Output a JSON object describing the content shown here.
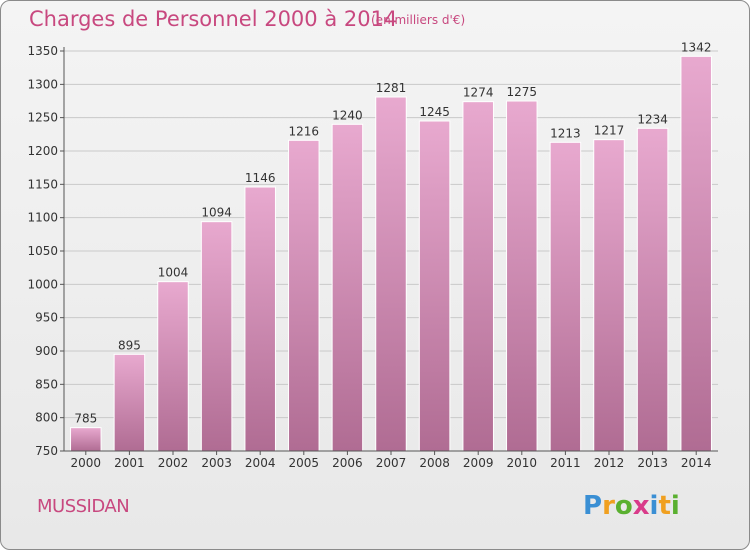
{
  "chart_data": {
    "type": "bar",
    "title": "Charges de Personnel 2000 à 2014",
    "subtitle": "(en milliers d'€)",
    "categories": [
      "2000",
      "2001",
      "2002",
      "2003",
      "2004",
      "2005",
      "2006",
      "2007",
      "2008",
      "2009",
      "2010",
      "2011",
      "2012",
      "2013",
      "2014"
    ],
    "values": [
      785,
      895,
      1004,
      1094,
      1146,
      1216,
      1240,
      1281,
      1245,
      1274,
      1275,
      1213,
      1217,
      1234,
      1342
    ],
    "ylim": [
      750,
      1350
    ],
    "yticks": [
      750,
      800,
      850,
      900,
      950,
      1000,
      1050,
      1100,
      1150,
      1200,
      1250,
      1300,
      1350
    ],
    "grid": true,
    "bar_color_top": "#e8a9cf",
    "bar_color_bottom": "#b06c93"
  },
  "commune": "MUSSIDAN",
  "logo": {
    "letters": [
      "P",
      "r",
      "o",
      "x",
      "i",
      "t",
      "i"
    ],
    "colors": [
      "#3a8fd4",
      "#f0a020",
      "#5ab030",
      "#d93b8a",
      "#3a8fd4",
      "#f0a020",
      "#5ab030"
    ]
  }
}
